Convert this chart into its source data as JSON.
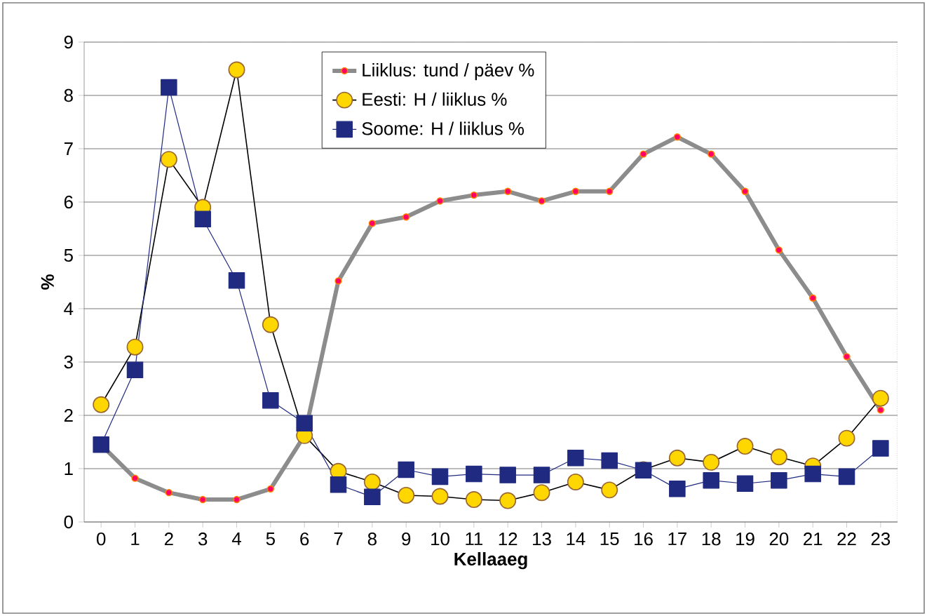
{
  "chart_data": {
    "type": "line",
    "xlabel": "Kellaaeg",
    "ylabel": "%",
    "categories": [
      "0",
      "1",
      "2",
      "3",
      "4",
      "5",
      "6",
      "7",
      "8",
      "9",
      "10",
      "11",
      "12",
      "13",
      "14",
      "15",
      "16",
      "17",
      "18",
      "19",
      "20",
      "21",
      "22",
      "23"
    ],
    "ylim": [
      0,
      9
    ],
    "yticks": [
      0,
      1,
      2,
      3,
      4,
      5,
      6,
      7,
      8,
      9
    ],
    "grid": "y",
    "legend": "top",
    "series": [
      {
        "name": "Liiklus: tund / päev %",
        "color": "#8c8c8c",
        "marker": "circle",
        "values": [
          1.45,
          0.82,
          0.55,
          0.42,
          0.42,
          0.62,
          1.62,
          4.52,
          5.6,
          5.72,
          6.02,
          6.13,
          6.2,
          6.02,
          6.2,
          6.2,
          6.9,
          7.22,
          6.9,
          6.2,
          5.1,
          4.2,
          3.1,
          2.1
        ]
      },
      {
        "name": "Eesti: H / liiklus %",
        "color": "#ffd700",
        "marker": "circle",
        "values": [
          2.2,
          3.28,
          6.8,
          5.9,
          8.48,
          3.7,
          1.62,
          0.95,
          0.75,
          0.5,
          0.48,
          0.42,
          0.4,
          0.55,
          0.75,
          0.6,
          0.98,
          1.2,
          1.12,
          1.42,
          1.22,
          1.05,
          1.57,
          2.32
        ]
      },
      {
        "name": "Soome: H / liiklus %",
        "color": "#1f2a80",
        "marker": "square",
        "values": [
          1.45,
          2.85,
          8.15,
          5.68,
          4.53,
          2.28,
          1.85,
          0.7,
          0.47,
          0.98,
          0.85,
          0.9,
          0.88,
          0.88,
          1.2,
          1.15,
          0.97,
          0.62,
          0.78,
          0.72,
          0.78,
          0.9,
          0.85,
          1.38
        ]
      }
    ]
  }
}
